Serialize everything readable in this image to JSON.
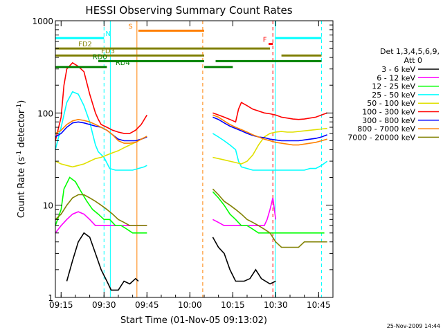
{
  "chart_data": {
    "type": "line",
    "title": "HESSI Observing Summary Count Rates",
    "xlabel": "Start Time (01-Nov-05 09:13:02)",
    "ylabel_main": "Count Rate (s",
    "ylabel_sup1": "-1",
    "ylabel_mid": " detector",
    "ylabel_sup2": "-1",
    "ylabel_end": ")",
    "x_unit": "minutes after 09:13:02",
    "xlim": [
      0,
      97
    ],
    "ylim": [
      1,
      1000
    ],
    "y_scale": "log",
    "x_ticks": [
      {
        "label": "09:15",
        "value": 2
      },
      {
        "label": "09:30",
        "value": 17
      },
      {
        "label": "09:45",
        "value": 32
      },
      {
        "label": "10:00",
        "value": 47
      },
      {
        "label": "10:15",
        "value": 62
      },
      {
        "label": "10:30",
        "value": 77
      },
      {
        "label": "10:45",
        "value": 92
      }
    ],
    "y_ticks": [
      {
        "label": "1",
        "value": 1
      },
      {
        "label": "10",
        "value": 10
      },
      {
        "label": "100",
        "value": 100
      },
      {
        "label": "1000",
        "value": 1000
      }
    ],
    "legend_title": [
      "Det 1,3,4,5,6,9,",
      "Att 0"
    ],
    "series": [
      {
        "name": "3 - 6 keV",
        "color": "#000000",
        "x": [
          4,
          6,
          8,
          10,
          12,
          14,
          16,
          18,
          19.5,
          22,
          24,
          26,
          28,
          29,
          55,
          57,
          59,
          61,
          63,
          66,
          68,
          70,
          72,
          75,
          77
        ],
        "y": [
          1.5,
          2.5,
          4,
          5,
          4.5,
          3,
          2,
          1.5,
          1.2,
          1.2,
          1.5,
          1.4,
          1.6,
          1.5,
          4.5,
          3.5,
          3,
          2,
          1.5,
          1.5,
          1.6,
          2,
          1.6,
          1.4,
          1.5
        ]
      },
      {
        "name": "6 - 12 keV",
        "color": "#ff00ff",
        "x": [
          0,
          2,
          4,
          6,
          8,
          10,
          12,
          14,
          16,
          19,
          21,
          23,
          25,
          27,
          29,
          31,
          32,
          55,
          57,
          59,
          61,
          63,
          65,
          68,
          71,
          73,
          74,
          75,
          76,
          77
        ],
        "y": [
          5,
          6,
          7,
          8,
          8.5,
          8,
          7,
          6,
          6,
          6,
          6,
          6,
          6,
          6,
          6,
          6,
          6,
          7,
          6.5,
          6,
          6,
          6,
          6,
          6,
          6,
          6,
          7,
          9,
          12,
          7
        ]
      },
      {
        "name": "12 - 25 keV",
        "color": "#00ff00",
        "x": [
          0,
          2,
          3,
          5,
          7,
          9,
          11,
          13,
          15,
          17,
          19,
          21,
          23,
          25,
          27,
          29,
          31,
          32,
          55,
          57,
          59,
          61,
          63,
          65,
          67,
          69,
          71,
          73,
          75,
          77,
          80,
          83,
          86,
          89,
          92,
          94
        ],
        "y": [
          6,
          9,
          15,
          20,
          18,
          14,
          11,
          9,
          8,
          7,
          7,
          6,
          6,
          5.5,
          5,
          5,
          5,
          5,
          14,
          12,
          10,
          8,
          7,
          6,
          6,
          5.5,
          5,
          5,
          5,
          5,
          5,
          5,
          5,
          5,
          5,
          5
        ]
      },
      {
        "name": "25 - 50 keV",
        "color": "#00ffff",
        "x": [
          0,
          2,
          4,
          6,
          8,
          10,
          12,
          13,
          14,
          15,
          17,
          19,
          21,
          23,
          25,
          27,
          29,
          31,
          32,
          55,
          57,
          59,
          61,
          63,
          64,
          65,
          67,
          69,
          71,
          73,
          75,
          77,
          79,
          81,
          83,
          85,
          87,
          89,
          91,
          93,
          95
        ],
        "y": [
          40,
          70,
          130,
          170,
          160,
          120,
          80,
          60,
          45,
          38,
          33,
          25,
          24,
          24,
          24,
          24,
          25,
          26,
          27,
          60,
          55,
          50,
          45,
          40,
          30,
          26,
          25,
          24,
          24,
          24,
          24,
          24,
          24,
          24,
          24,
          24,
          24,
          25,
          25,
          27,
          30
        ]
      },
      {
        "name": "50 - 100 keV",
        "color": "#e0e000",
        "x": [
          0,
          2,
          4,
          6,
          8,
          10,
          12,
          14,
          16,
          18,
          20,
          22,
          24,
          26,
          28,
          30,
          32,
          55,
          57,
          59,
          61,
          63,
          65,
          67,
          69,
          71,
          73,
          75,
          77,
          79,
          81,
          83,
          85,
          87,
          89,
          91,
          93,
          95
        ],
        "y": [
          30,
          28,
          27,
          26,
          27,
          28,
          30,
          32,
          33,
          35,
          37,
          39,
          42,
          45,
          48,
          52,
          55,
          33,
          32,
          31,
          30,
          29,
          28,
          30,
          35,
          45,
          55,
          60,
          62,
          63,
          62,
          62,
          63,
          64,
          65,
          66,
          67,
          68
        ]
      },
      {
        "name": "100 - 300 keV",
        "color": "#ff0000",
        "x": [
          0,
          2,
          3,
          4,
          6,
          8,
          10,
          12,
          14,
          15,
          16,
          18,
          20,
          22,
          24,
          26,
          28,
          30,
          32,
          55,
          57,
          59,
          61,
          63,
          64,
          65,
          67,
          69,
          71,
          73,
          75,
          77,
          79,
          81,
          83,
          85,
          87,
          89,
          91,
          93,
          95
        ],
        "y": [
          50,
          90,
          200,
          300,
          350,
          320,
          280,
          160,
          100,
          85,
          75,
          70,
          65,
          62,
          60,
          60,
          65,
          75,
          95,
          100,
          95,
          90,
          85,
          80,
          110,
          130,
          120,
          110,
          105,
          100,
          98,
          95,
          90,
          88,
          86,
          85,
          86,
          88,
          90,
          95,
          100
        ]
      },
      {
        "name": "300 - 800 keV",
        "color": "#0000ff",
        "x": [
          0,
          2,
          4,
          6,
          8,
          10,
          12,
          14,
          16,
          18,
          20,
          22,
          24,
          26,
          28,
          30,
          32,
          55,
          57,
          59,
          61,
          63,
          65,
          67,
          69,
          71,
          73,
          75,
          77,
          79,
          81,
          83,
          85,
          87,
          89,
          91,
          93,
          95
        ],
        "y": [
          55,
          60,
          70,
          78,
          80,
          78,
          75,
          72,
          70,
          65,
          58,
          52,
          50,
          50,
          50,
          52,
          55,
          90,
          85,
          78,
          72,
          68,
          64,
          60,
          57,
          55,
          54,
          52,
          51,
          50,
          50,
          50,
          50,
          51,
          52,
          53,
          55,
          58
        ]
      },
      {
        "name": "800 - 7000 keV",
        "color": "#ff8000",
        "x": [
          0,
          2,
          4,
          6,
          8,
          10,
          12,
          14,
          16,
          18,
          20,
          22,
          24,
          26,
          28,
          30,
          32,
          55,
          57,
          59,
          61,
          63,
          65,
          67,
          69,
          71,
          73,
          75,
          77,
          79,
          81,
          83,
          85,
          87,
          89,
          91,
          93,
          95
        ],
        "y": [
          60,
          65,
          75,
          82,
          85,
          83,
          80,
          75,
          70,
          65,
          58,
          50,
          47,
          47,
          48,
          52,
          56,
          95,
          90,
          82,
          75,
          70,
          66,
          62,
          58,
          55,
          52,
          50,
          48,
          47,
          46,
          45,
          45,
          46,
          47,
          48,
          50,
          52
        ]
      },
      {
        "name": "7000 - 20000 keV",
        "color": "#808000",
        "x": [
          0,
          2,
          4,
          6,
          8,
          10,
          12,
          14,
          16,
          18,
          20,
          22,
          24,
          26,
          28,
          30,
          32,
          55,
          57,
          59,
          61,
          63,
          65,
          67,
          69,
          71,
          73,
          75,
          77,
          79,
          81,
          83,
          85,
          87,
          89,
          91,
          93,
          95
        ],
        "y": [
          7,
          8,
          10,
          12,
          13,
          13,
          12,
          11,
          10,
          9,
          8,
          7,
          6.5,
          6,
          6,
          6,
          6,
          15,
          13,
          11,
          10,
          9,
          8,
          7,
          6.5,
          6,
          5.5,
          5,
          4,
          3.5,
          3.5,
          3.5,
          3.5,
          4,
          4,
          4,
          4,
          4
        ]
      }
    ],
    "state_bars": [
      {
        "label": "N",
        "color": "#00ffff",
        "y": 650,
        "x0": 0,
        "x1": 17,
        "label_x": 17.5
      },
      {
        "label": "",
        "color": "#00ffff",
        "y": 650,
        "x0": 77,
        "x1": 93,
        "label_x": null
      },
      {
        "label": "S",
        "color": "#ff8000",
        "y": 780,
        "x0": 29,
        "x1": 52,
        "label_x": 25.5
      },
      {
        "label": "F",
        "color": "#ff0000",
        "y": 560,
        "x0": 74.5,
        "x1": 76,
        "label_x": 72.5
      },
      {
        "label": "FD2",
        "color": "#808000",
        "y": 500,
        "x0": 0,
        "x1": 75,
        "label_x": 8
      },
      {
        "label": "FD3",
        "color": "#808000",
        "y": 420,
        "x0": 0,
        "x1": 52,
        "label_x": 16
      },
      {
        "label": "",
        "color": "#808000",
        "y": 420,
        "x0": 79,
        "x1": 93,
        "label_x": null
      },
      {
        "label": "RD0",
        "color": "#008000",
        "y": 365,
        "x0": 15,
        "x1": 52,
        "label_x": 13
      },
      {
        "label": "",
        "color": "#008000",
        "y": 365,
        "x0": 56,
        "x1": 93,
        "label_x": null
      },
      {
        "label": "RD4",
        "color": "#008000",
        "y": 315,
        "x0": 0,
        "x1": 18,
        "label_x": 21
      },
      {
        "label": "",
        "color": "#008000",
        "y": 315,
        "x0": 52,
        "x1": 62,
        "label_x": null
      }
    ],
    "vlines": [
      {
        "x": 0,
        "color": "#00ffff",
        "dash": false
      },
      {
        "x": 17,
        "color": "#00ffff",
        "dash": true
      },
      {
        "x": 19.2,
        "color": "#00ffff",
        "dash": false
      },
      {
        "x": 28.5,
        "color": "#ff8000",
        "dash": false
      },
      {
        "x": 51.5,
        "color": "#ff8000",
        "dash": true
      },
      {
        "x": 76,
        "color": "#ff0000",
        "dash": true
      },
      {
        "x": 76.8,
        "color": "#00ffff",
        "dash": false
      },
      {
        "x": 93,
        "color": "#00ffff",
        "dash": true
      }
    ]
  },
  "footer": {
    "timestamp": "25-Nov-2009 14:44"
  }
}
